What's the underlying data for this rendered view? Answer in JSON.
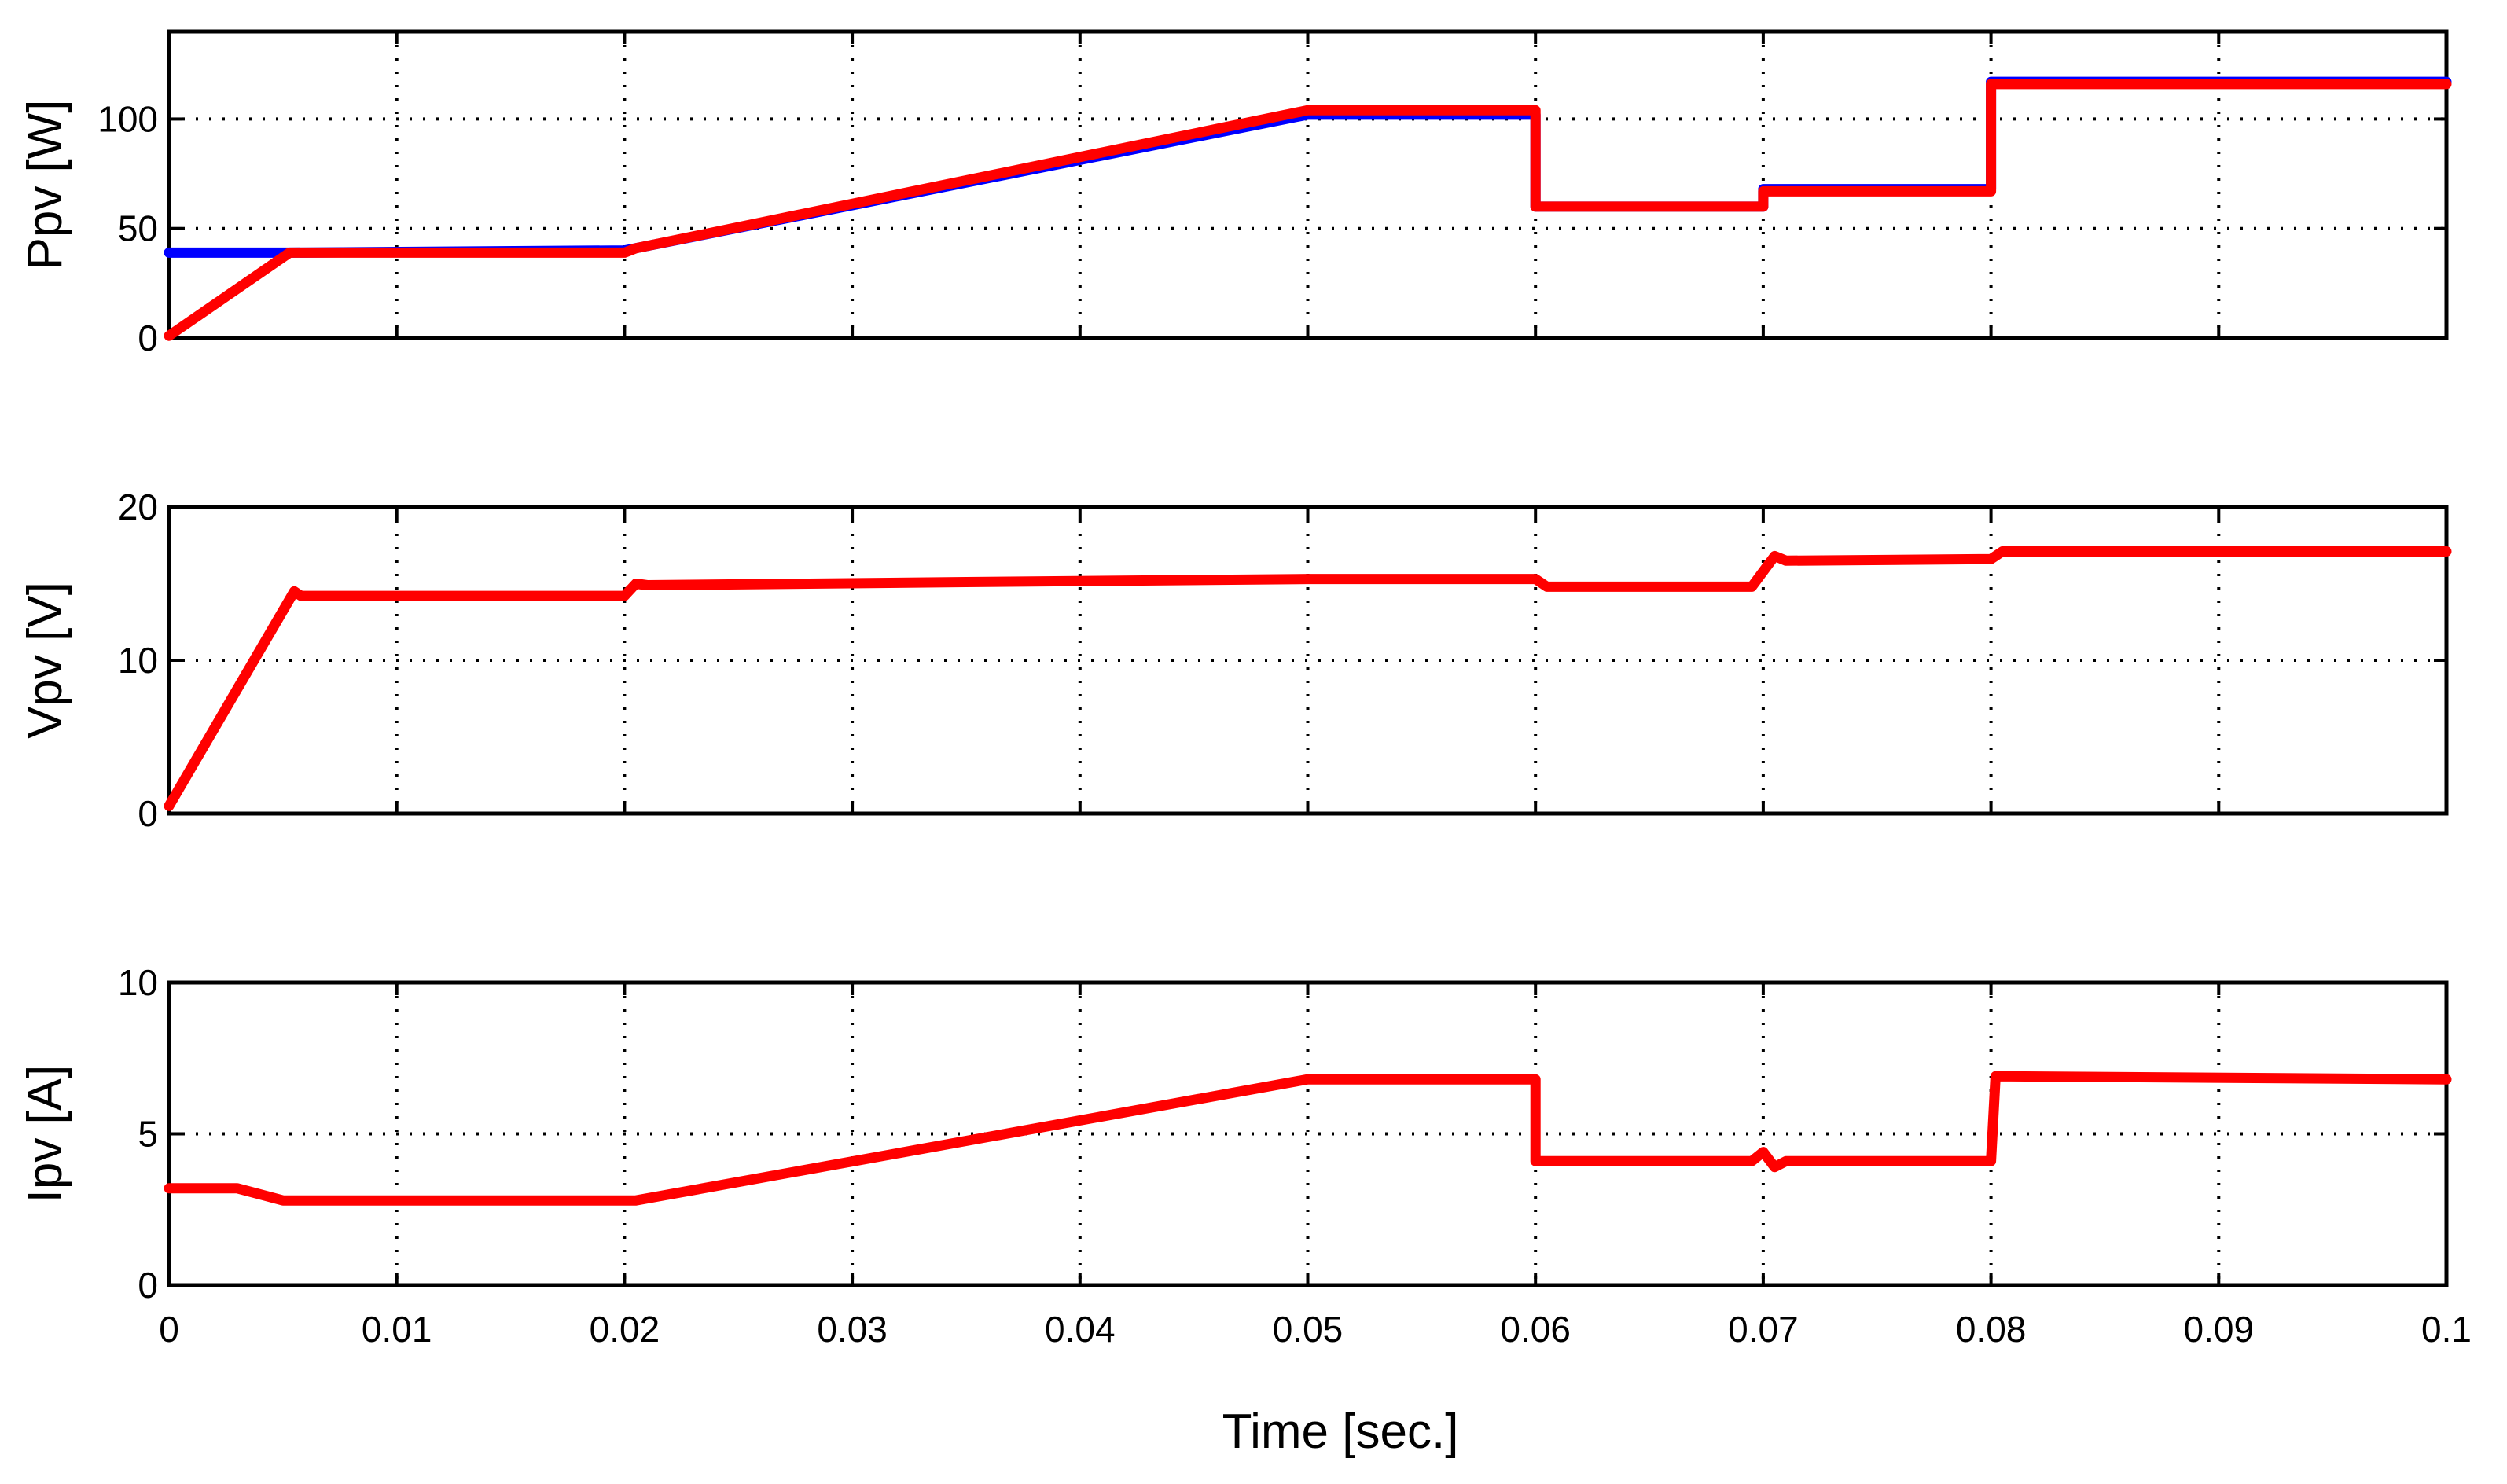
{
  "chart_data": [
    {
      "type": "line",
      "ylabel": "Ppv [W]",
      "xlim": [
        0,
        0.1
      ],
      "ylim": [
        0,
        140
      ],
      "yticks": [
        0,
        50,
        100
      ],
      "grid": true,
      "series": [
        {
          "color": "#0000ff",
          "x": [
            0,
            0.0053,
            0.0053,
            0.02,
            0.05,
            0.06,
            0.06,
            0.07,
            0.07,
            0.08,
            0.08,
            0.1
          ],
          "y": [
            39,
            39,
            39,
            40,
            102,
            102,
            60,
            60,
            68,
            68,
            117,
            117
          ]
        },
        {
          "color": "#ff0000",
          "x": [
            0,
            0.0053,
            0.02,
            0.0205,
            0.05,
            0.06,
            0.06,
            0.07,
            0.07,
            0.08,
            0.08,
            0.1
          ],
          "y": [
            1,
            39,
            39,
            41,
            104,
            104,
            60,
            60,
            67,
            67,
            116,
            116
          ]
        }
      ]
    },
    {
      "type": "line",
      "ylabel": "Vpv [V]",
      "xlim": [
        0,
        0.1
      ],
      "ylim": [
        0,
        20
      ],
      "yticks": [
        0,
        10,
        20
      ],
      "grid": true,
      "series": [
        {
          "color": "#ff0000",
          "x": [
            0,
            0.0055,
            0.0058,
            0.02,
            0.0205,
            0.021,
            0.035,
            0.05,
            0.06,
            0.0605,
            0.0695,
            0.0705,
            0.071,
            0.08,
            0.0805,
            0.1
          ],
          "y": [
            0.5,
            14.5,
            14.2,
            14.2,
            15,
            14.9,
            15.1,
            15.3,
            15.3,
            14.8,
            14.8,
            16.8,
            16.5,
            16.6,
            17.1,
            17.1
          ]
        }
      ]
    },
    {
      "type": "line",
      "ylabel": "Ipv [A]",
      "xlim": [
        0,
        0.1
      ],
      "ylim": [
        0,
        10
      ],
      "yticks": [
        0,
        5,
        10
      ],
      "xticks": [
        "0",
        "0.01",
        "0.02",
        "0.03",
        "0.04",
        "0.05",
        "0.06",
        "0.07",
        "0.08",
        "0.09",
        "0.1"
      ],
      "xlabel": "Time [sec.]",
      "grid": true,
      "series": [
        {
          "color": "#ff0000",
          "x": [
            0,
            0.003,
            0.005,
            0.0055,
            0.02,
            0.0205,
            0.05,
            0.06,
            0.06,
            0.0695,
            0.07,
            0.0705,
            0.071,
            0.08,
            0.0802,
            0.1
          ],
          "y": [
            3.2,
            3.2,
            2.8,
            2.8,
            2.8,
            2.8,
            6.8,
            6.8,
            4.1,
            4.1,
            4.4,
            3.9,
            4.1,
            4.1,
            6.9,
            6.8
          ]
        }
      ]
    }
  ]
}
